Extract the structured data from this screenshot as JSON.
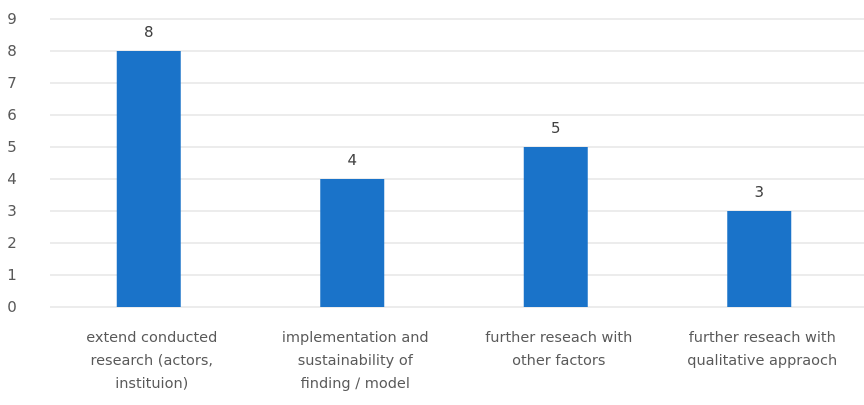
{
  "chart_data": {
    "type": "bar",
    "title": "",
    "xlabel": "",
    "ylabel": "",
    "ylim": [
      0,
      9
    ],
    "yticks": [
      0,
      1,
      2,
      3,
      4,
      5,
      6,
      7,
      8,
      9
    ],
    "grid": true,
    "legend": "none",
    "bar_color": "#1a73c9",
    "categories": [
      [
        "extend conducted",
        "research (actors,",
        "instituion)"
      ],
      [
        "implementation and",
        "sustainability of",
        "finding / model"
      ],
      [
        "further reseach with",
        "other factors"
      ],
      [
        "further reseach with",
        "qualitative appraoch"
      ]
    ],
    "values": [
      8,
      4,
      5,
      3
    ],
    "data_labels": [
      "8",
      "4",
      "5",
      "3"
    ]
  }
}
